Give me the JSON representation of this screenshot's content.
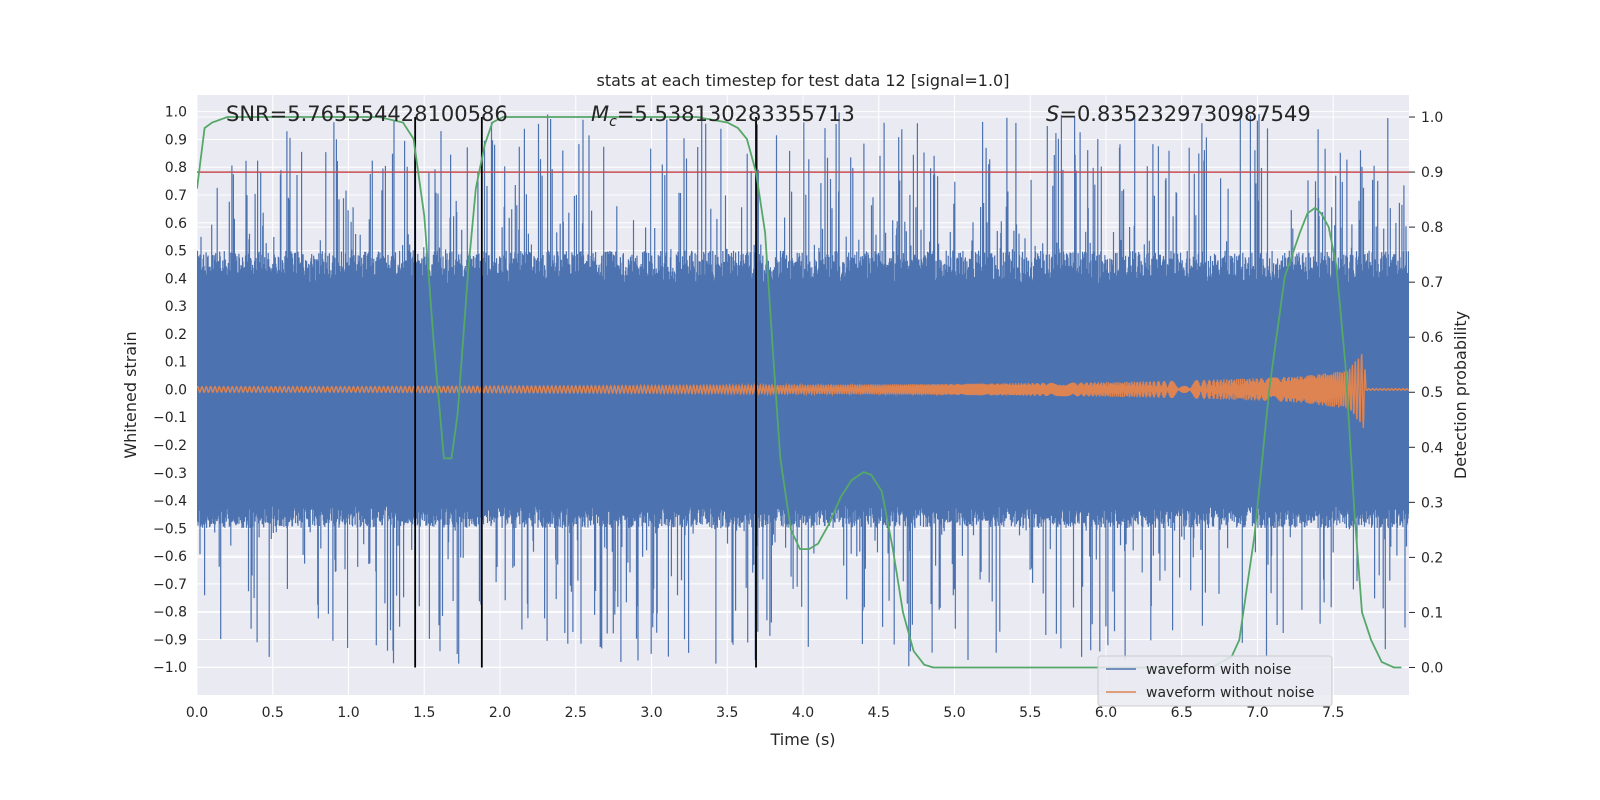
{
  "chart_data": {
    "type": "line",
    "title": "stats at each timestep for test data 12 [signal=1.0]",
    "xlabel": "Time (s)",
    "ylabel": "Whitened strain",
    "y2label": "Detection probability",
    "xlim": [
      0.0,
      8.0
    ],
    "ylim": [
      -1.1,
      1.06
    ],
    "y2lim": [
      -0.05,
      1.04
    ],
    "x_ticks": [
      "0.0",
      "0.5",
      "1.0",
      "1.5",
      "2.0",
      "2.5",
      "3.0",
      "3.5",
      "4.0",
      "4.5",
      "5.0",
      "5.5",
      "6.0",
      "6.5",
      "7.0",
      "7.5"
    ],
    "y_ticks": [
      "1.0",
      "0.9",
      "0.8",
      "0.7",
      "0.6",
      "0.5",
      "0.4",
      "0.3",
      "0.2",
      "0.1",
      "0.0",
      "-0.1",
      "-0.2",
      "-0.3",
      "-0.4",
      "-0.5",
      "-0.6",
      "-0.7",
      "-0.8",
      "-0.9",
      "-1.0"
    ],
    "y2_ticks": [
      "1.0",
      "0.9",
      "0.8",
      "0.7",
      "0.6",
      "0.5",
      "0.4",
      "0.3",
      "0.2",
      "0.1",
      "0.0"
    ],
    "grid": true,
    "legend_placement": "lower-right",
    "annotations": {
      "snr": "SNR=5.765554428100586",
      "mc_symbol": "M",
      "mc_sub": "c",
      "mc_value": "=5.538130283355713",
      "s_symbol": "S",
      "s_value": "=0.8352329730987549"
    },
    "threshold_line": {
      "y2": 0.9,
      "color": "#c44e52"
    },
    "vertical_lines": {
      "x": [
        1.44,
        1.88,
        3.69
      ],
      "color": "#000000"
    },
    "series": [
      {
        "name": "waveform with noise",
        "color": "#4c72b0",
        "envelope_top": 0.38,
        "envelope_bottom": -0.42,
        "spikes_max": 1.0,
        "spikes_min": -1.0
      },
      {
        "name": "waveform without noise",
        "color": "#dd8452",
        "x": [
          0.0,
          1.0,
          2.0,
          3.0,
          4.0,
          5.0,
          6.0,
          6.5,
          7.0,
          7.3,
          7.6,
          7.7,
          7.72
        ],
        "amplitude": [
          0.01,
          0.01,
          0.012,
          0.014,
          0.016,
          0.02,
          0.026,
          0.032,
          0.04,
          0.048,
          0.07,
          0.14,
          0.0
        ]
      },
      {
        "name": "detection probability",
        "color": "#55a868",
        "x": [
          0.0,
          0.05,
          0.1,
          0.2,
          0.4,
          0.8,
          1.2,
          1.36,
          1.43,
          1.5,
          1.56,
          1.63,
          1.68,
          1.72,
          1.79,
          1.84,
          1.9,
          1.95,
          2.02,
          2.1,
          2.3,
          2.8,
          3.3,
          3.5,
          3.57,
          3.63,
          3.69,
          3.75,
          3.8,
          3.85,
          3.92,
          3.98,
          4.04,
          4.1,
          4.17,
          4.25,
          4.32,
          4.4,
          4.45,
          4.52,
          4.59,
          4.66,
          4.73,
          4.8,
          4.86,
          5.0,
          6.0,
          6.7,
          6.83,
          6.88,
          6.98,
          7.08,
          7.18,
          7.28,
          7.33,
          7.38,
          7.42,
          7.47,
          7.52,
          7.58,
          7.64,
          7.69,
          7.75,
          7.82,
          7.9,
          7.95
        ],
        "values": [
          0.87,
          0.98,
          0.99,
          1.0,
          1.0,
          1.0,
          1.0,
          0.99,
          0.96,
          0.82,
          0.6,
          0.38,
          0.38,
          0.46,
          0.72,
          0.87,
          0.95,
          0.99,
          1.0,
          1.0,
          1.0,
          1.0,
          1.0,
          0.99,
          0.98,
          0.96,
          0.9,
          0.79,
          0.58,
          0.38,
          0.25,
          0.215,
          0.215,
          0.225,
          0.26,
          0.31,
          0.34,
          0.355,
          0.35,
          0.32,
          0.22,
          0.1,
          0.03,
          0.005,
          0.0,
          0.0,
          0.0,
          0.0,
          0.02,
          0.05,
          0.24,
          0.51,
          0.71,
          0.79,
          0.825,
          0.835,
          0.825,
          0.8,
          0.73,
          0.55,
          0.28,
          0.1,
          0.05,
          0.01,
          0.0,
          0.0
        ]
      }
    ]
  }
}
